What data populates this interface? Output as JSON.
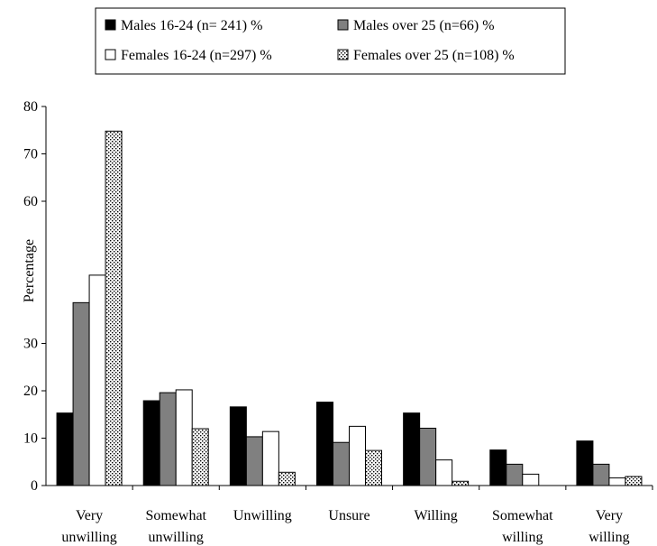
{
  "chart_data": {
    "type": "bar",
    "title": "",
    "xlabel": "",
    "ylabel": "Percentage",
    "ylim": [
      0,
      80
    ],
    "yticks": [
      0,
      10,
      20,
      30,
      60,
      70,
      80
    ],
    "categories": [
      [
        "Very",
        "unwilling"
      ],
      [
        "Somewhat",
        "unwilling"
      ],
      [
        "Unwilling"
      ],
      [
        "Unsure"
      ],
      [
        "Willing"
      ],
      [
        "Somewhat",
        "willing"
      ],
      [
        "Very",
        "willing"
      ]
    ],
    "legend_position": "top-center",
    "series": [
      {
        "name": "Males 16-24 (n= 241) %",
        "fill": "solid-black",
        "values": [
          15.3,
          17.9,
          16.6,
          17.6,
          15.3,
          7.5,
          9.4
        ]
      },
      {
        "name": "Males over 25 (n=66) %",
        "fill": "solid-gray",
        "values": [
          38.6,
          19.6,
          10.3,
          9.1,
          12.1,
          4.5,
          4.5
        ]
      },
      {
        "name": "Females 16-24 (n=297) %",
        "fill": "white",
        "values": [
          44.4,
          20.2,
          11.4,
          12.5,
          5.4,
          2.4,
          1.6
        ]
      },
      {
        "name": "Females over 25 (n=108) %",
        "fill": "dotted",
        "values": [
          74.8,
          12.0,
          2.8,
          7.4,
          0.9,
          0,
          1.9
        ]
      }
    ]
  },
  "colors": {
    "solid-black": "#000000",
    "solid-gray": "#808080",
    "white": "#ffffff",
    "dotted": "#ffffff",
    "stroke": "#000000"
  }
}
